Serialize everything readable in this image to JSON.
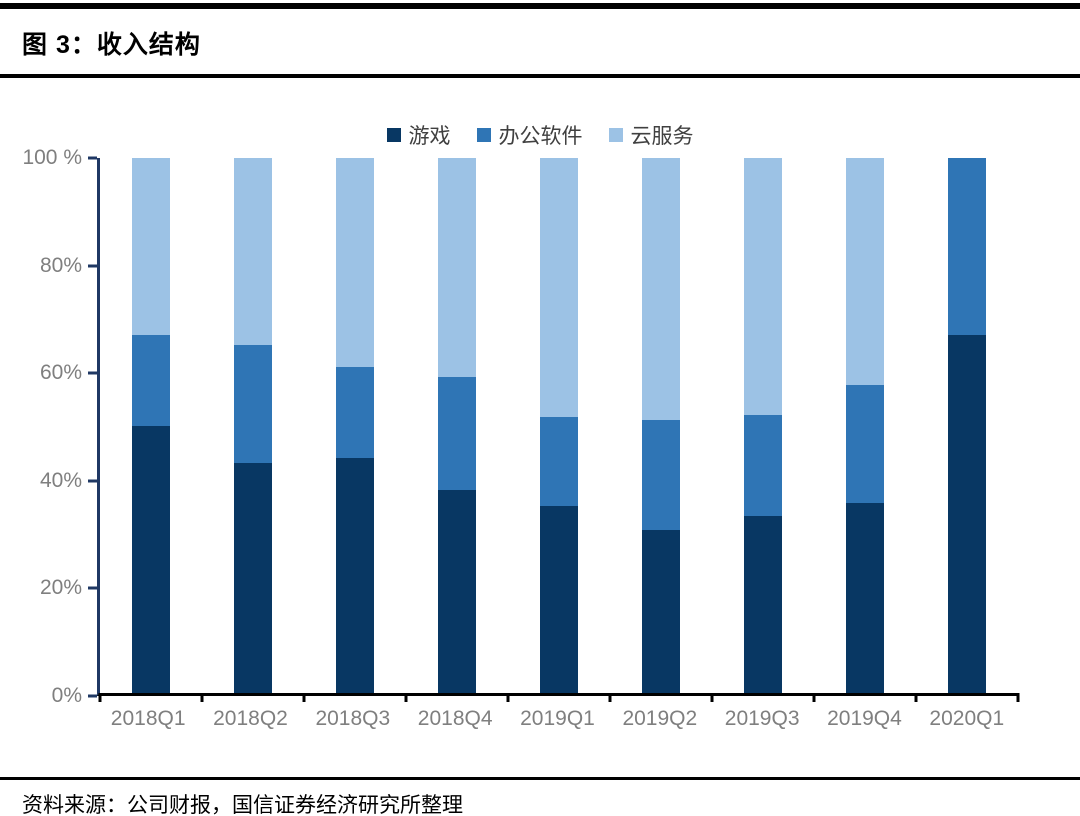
{
  "header": {
    "title": "图 3：收入结构"
  },
  "footer": {
    "source": "资料来源：公司财报，国信证券经济研究所整理"
  },
  "colors": {
    "games": "#083763",
    "office": "#2F75B5",
    "cloud": "#9CC2E5",
    "y_axis": "#1F3864",
    "x_axis": "#000000",
    "axis_label": "#7F7F7F",
    "legend_text": "#404040"
  },
  "chart_data": {
    "type": "bar",
    "stacked": true,
    "percent": true,
    "title": "收入结构",
    "categories": [
      "2018Q1",
      "2018Q2",
      "2018Q3",
      "2018Q4",
      "2019Q1",
      "2019Q2",
      "2019Q3",
      "2019Q4",
      "2020Q1"
    ],
    "series": [
      {
        "name": "游戏",
        "key": "games",
        "values": [
          50,
          43,
          44,
          38,
          35,
          30.5,
          33,
          35.5,
          67
        ]
      },
      {
        "name": "办公软件",
        "key": "office",
        "values": [
          17,
          22,
          17,
          21,
          16.5,
          20.5,
          19,
          22,
          33
        ]
      },
      {
        "name": "云服务",
        "key": "cloud",
        "values": [
          33,
          35,
          39,
          41,
          48.5,
          49,
          48,
          42.5,
          0
        ]
      }
    ],
    "ylim": [
      0,
      100
    ],
    "y_ticks": [
      {
        "value": 100,
        "label": "100 %"
      },
      {
        "value": 80,
        "label": "80%"
      },
      {
        "value": 60,
        "label": "60%"
      },
      {
        "value": 40,
        "label": "40%"
      },
      {
        "value": 20,
        "label": "20%"
      },
      {
        "value": 0,
        "label": "0%"
      }
    ],
    "legend_position": "top-center",
    "grid": false
  }
}
